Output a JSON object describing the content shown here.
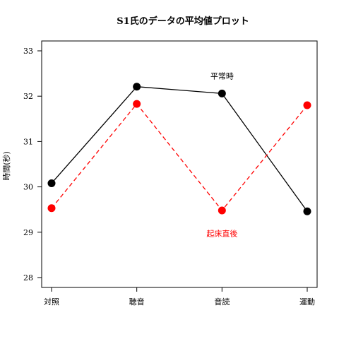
{
  "chart_data": {
    "type": "line",
    "title": "S1氏のデータの平均値プロット",
    "xlabel": "",
    "ylabel": "時間(秒)",
    "categories": [
      "対照",
      "聴音",
      "音読",
      "運動"
    ],
    "ylim": [
      28,
      33
    ],
    "yticks": [
      28,
      29,
      30,
      31,
      32,
      33
    ],
    "grid": false,
    "legend": "none",
    "series": [
      {
        "values": [
          30.08,
          32.21,
          32.06,
          29.46
        ],
        "color": "#000000",
        "line_style": "solid"
      },
      {
        "values": [
          29.53,
          31.83,
          29.48,
          31.8
        ],
        "color": "#ff0000",
        "line_style": "dashed"
      }
    ],
    "annotations": [
      {
        "text": "平常時",
        "color": "#000000",
        "near_category": "音読",
        "y": 32.45
      },
      {
        "text": "起床直後",
        "color": "#ff0000",
        "near_category": "音読",
        "y": 28.97
      }
    ]
  }
}
